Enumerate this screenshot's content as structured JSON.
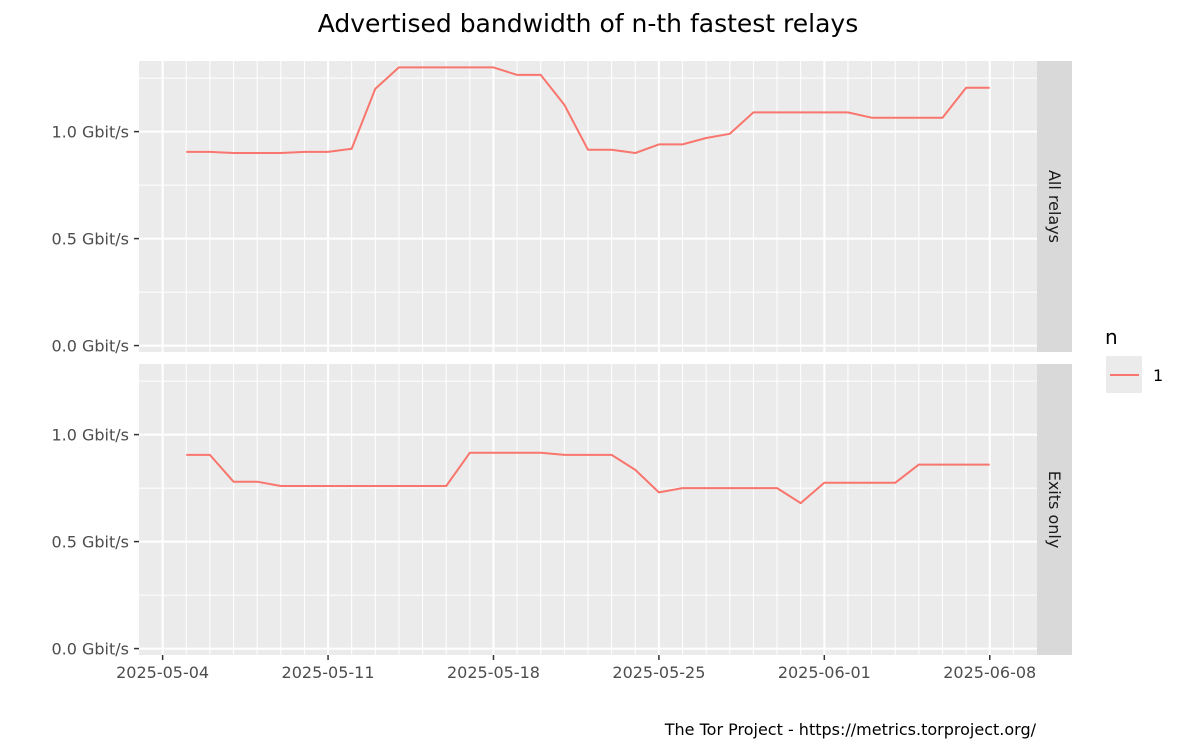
{
  "chart_data": {
    "type": "line",
    "title": "Advertised bandwidth of n-th fastest relays",
    "caption": "The Tor Project - https://metrics.torproject.org/",
    "xlabel": "",
    "ylabel": "",
    "x_start": "2025-05-04",
    "x_ticks": [
      "2025-05-04",
      "2025-05-11",
      "2025-05-18",
      "2025-05-25",
      "2025-06-01",
      "2025-06-08"
    ],
    "y_ticks": [
      0,
      0.5,
      1.0
    ],
    "y_tick_labels": [
      "0.0 Gbit/s",
      "0.5 Gbit/s",
      "1.0 Gbit/s"
    ],
    "ylim": [
      -0.03,
      1.33
    ],
    "xlim": [
      "2025-05-03",
      "2025-06-10"
    ],
    "legend": {
      "title": "n",
      "entries": [
        "1"
      ],
      "position": "right"
    },
    "line_color": "#F8766D",
    "grid": true,
    "panels": [
      {
        "label": "All relays",
        "series": [
          {
            "name": "1",
            "x": [
              "2025-05-05",
              "2025-05-06",
              "2025-05-07",
              "2025-05-08",
              "2025-05-09",
              "2025-05-10",
              "2025-05-11",
              "2025-05-12",
              "2025-05-13",
              "2025-05-14",
              "2025-05-15",
              "2025-05-16",
              "2025-05-17",
              "2025-05-18",
              "2025-05-19",
              "2025-05-20",
              "2025-05-21",
              "2025-05-22",
              "2025-05-23",
              "2025-05-24",
              "2025-05-25",
              "2025-05-26",
              "2025-05-27",
              "2025-05-28",
              "2025-05-29",
              "2025-05-30",
              "2025-05-31",
              "2025-06-01",
              "2025-06-02",
              "2025-06-03",
              "2025-06-04",
              "2025-06-05",
              "2025-06-06",
              "2025-06-07",
              "2025-06-08"
            ],
            "values": [
              0.905,
              0.905,
              0.9,
              0.9,
              0.9,
              0.905,
              0.905,
              0.92,
              1.2,
              1.3,
              1.3,
              1.3,
              1.3,
              1.3,
              1.265,
              1.265,
              1.125,
              0.915,
              0.915,
              0.9,
              0.94,
              0.94,
              0.97,
              0.99,
              1.09,
              1.09,
              1.09,
              1.09,
              1.09,
              1.065,
              1.065,
              1.065,
              1.065,
              1.205,
              1.205
            ]
          }
        ]
      },
      {
        "label": "Exits only",
        "series": [
          {
            "name": "1",
            "x": [
              "2025-05-05",
              "2025-05-06",
              "2025-05-07",
              "2025-05-08",
              "2025-05-09",
              "2025-05-10",
              "2025-05-11",
              "2025-05-12",
              "2025-05-13",
              "2025-05-14",
              "2025-05-15",
              "2025-05-16",
              "2025-05-17",
              "2025-05-18",
              "2025-05-19",
              "2025-05-20",
              "2025-05-21",
              "2025-05-22",
              "2025-05-23",
              "2025-05-24",
              "2025-05-25",
              "2025-05-26",
              "2025-05-27",
              "2025-05-28",
              "2025-05-29",
              "2025-05-30",
              "2025-05-31",
              "2025-06-01",
              "2025-06-02",
              "2025-06-03",
              "2025-06-04",
              "2025-06-05",
              "2025-06-06",
              "2025-06-07",
              "2025-06-08"
            ],
            "values": [
              0.905,
              0.905,
              0.78,
              0.78,
              0.76,
              0.76,
              0.76,
              0.76,
              0.76,
              0.76,
              0.76,
              0.76,
              0.915,
              0.915,
              0.915,
              0.915,
              0.905,
              0.905,
              0.905,
              0.835,
              0.73,
              0.75,
              0.75,
              0.75,
              0.75,
              0.75,
              0.68,
              0.775,
              0.775,
              0.775,
              0.775,
              0.86,
              0.86,
              0.86,
              0.86
            ]
          }
        ]
      }
    ]
  }
}
